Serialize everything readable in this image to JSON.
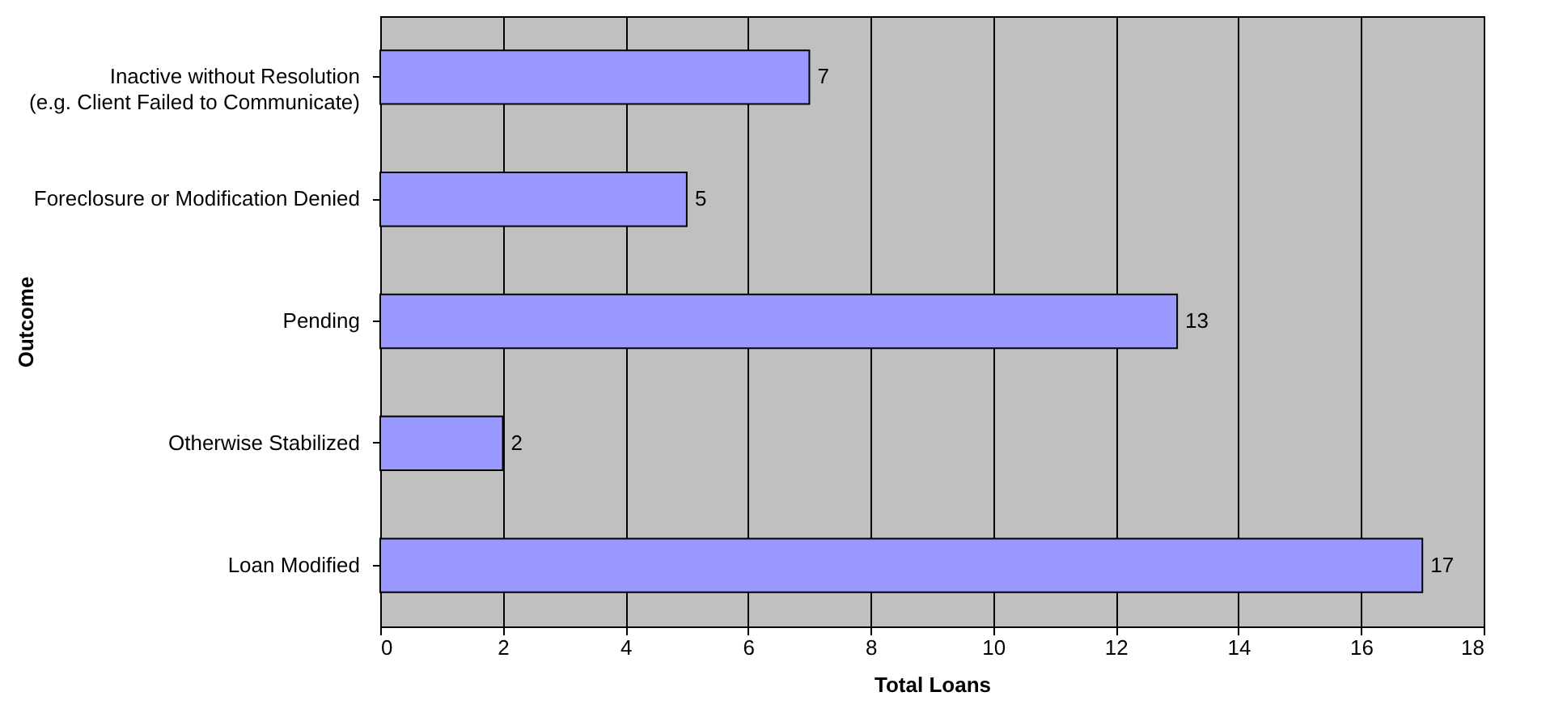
{
  "chart_data": {
    "type": "bar",
    "orientation": "horizontal",
    "xlabel": "Total Loans",
    "ylabel": "Outcome",
    "categories": [
      "Inactive without Resolution\n(e.g. Client Failed to Communicate)",
      "Foreclosure or Modification Denied",
      "Pending",
      "Otherwise Stabilized",
      "Loan Modified"
    ],
    "values": [
      7,
      5,
      13,
      2,
      17
    ],
    "color": "#9999ff",
    "xlim": [
      0,
      18
    ],
    "xticks": [
      0,
      2,
      4,
      6,
      8,
      10,
      12,
      14,
      16,
      18
    ],
    "grid": "x",
    "data_labels": true
  }
}
